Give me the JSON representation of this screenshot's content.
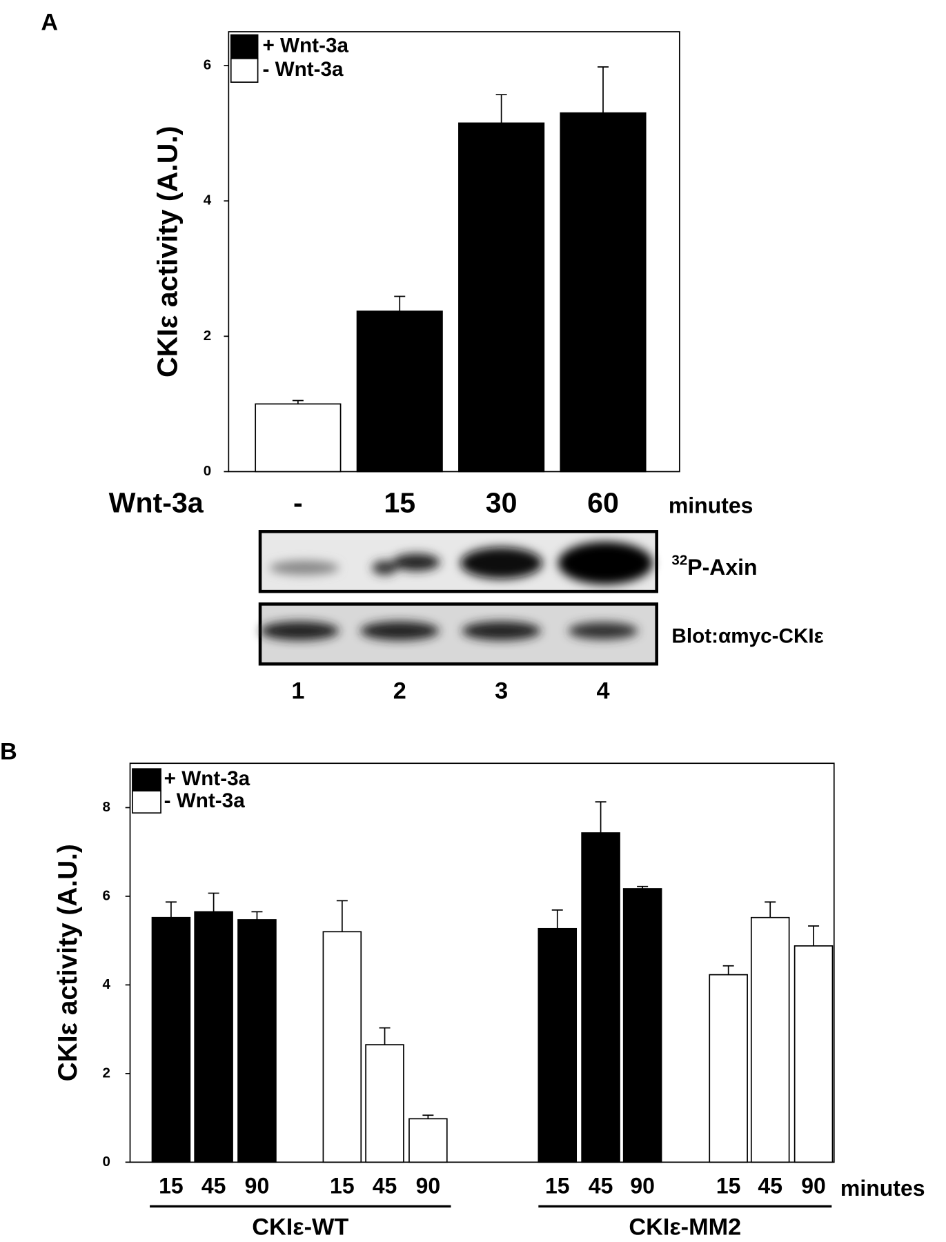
{
  "chart_data": [
    {
      "type": "bar",
      "panel": "A",
      "ylabel": "CKIε activity (A.U.)",
      "xlabel": "Wnt-3a",
      "xunit": "minutes",
      "categories": [
        "-",
        "15",
        "30",
        "60"
      ],
      "series": [
        {
          "name": "+ Wnt-3a",
          "color": "#000000",
          "values": [
            null,
            2.37,
            5.15,
            5.3
          ],
          "errors": [
            null,
            0.22,
            0.42,
            0.68
          ]
        },
        {
          "name": "- Wnt-3a",
          "color": "#ffffff",
          "values": [
            1.0,
            null,
            null,
            null
          ],
          "errors": [
            0.05,
            null,
            null,
            null
          ]
        }
      ],
      "ylim": [
        0,
        6.5
      ],
      "yticks": [
        0,
        2,
        4,
        6
      ],
      "legend": "upper left"
    },
    {
      "type": "bar",
      "panel": "B",
      "ylabel": "CKIε activity (A.U.)",
      "xunit": "minutes",
      "categories": [
        "15",
        "45",
        "90",
        "15",
        "45",
        "90",
        "15",
        "45",
        "90",
        "15",
        "45",
        "90"
      ],
      "groups": [
        "CKIε-WT",
        "CKIε-MM2"
      ],
      "series": [
        {
          "name": "+ Wnt-3a",
          "color": "#000000",
          "values": [
            5.52,
            5.65,
            5.47,
            null,
            null,
            null,
            5.27,
            7.43,
            6.17,
            null,
            null,
            null
          ],
          "errors": [
            0.35,
            0.42,
            0.18,
            null,
            null,
            null,
            0.42,
            0.7,
            0.05,
            null,
            null,
            null
          ]
        },
        {
          "name": "- Wnt-3a",
          "color": "#ffffff",
          "values": [
            null,
            null,
            null,
            5.2,
            2.65,
            0.98,
            null,
            null,
            null,
            4.23,
            5.52,
            4.88
          ],
          "errors": [
            null,
            null,
            null,
            0.7,
            0.38,
            0.08,
            null,
            null,
            null,
            0.2,
            0.35,
            0.45
          ]
        }
      ],
      "ylim": [
        0,
        9
      ],
      "yticks": [
        0,
        2,
        4,
        6,
        8
      ],
      "legend": "upper left"
    }
  ],
  "blot": {
    "rows": [
      {
        "sup": "32",
        "label": "P-Axin"
      },
      {
        "label": "Blot:αmyc-CKIε"
      }
    ],
    "lanes": [
      "1",
      "2",
      "3",
      "4"
    ]
  }
}
